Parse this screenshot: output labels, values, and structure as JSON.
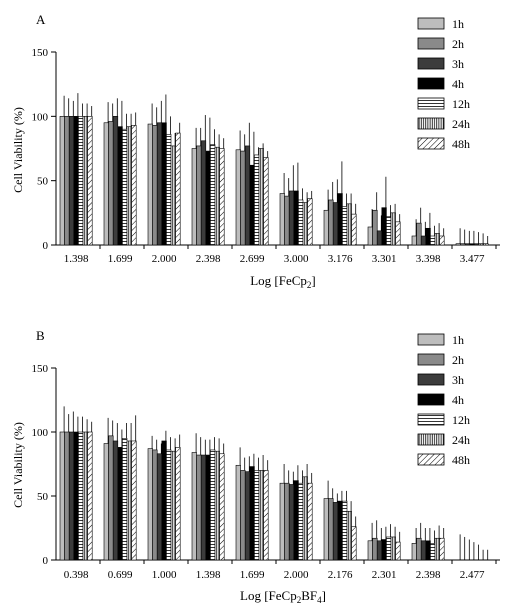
{
  "series_styles": [
    {
      "fill": "#bdbdbd",
      "pattern": "solid"
    },
    {
      "fill": "#8a8a8a",
      "pattern": "solid"
    },
    {
      "fill": "#3c3c3c",
      "pattern": "solid"
    },
    {
      "fill": "#000000",
      "pattern": "solid"
    },
    {
      "fill": "#ffffff",
      "pattern": "hstripe"
    },
    {
      "fill": "#ffffff",
      "pattern": "vstripe"
    },
    {
      "fill": "#ffffff",
      "pattern": "diag"
    }
  ],
  "chart_data": [
    {
      "type": "bar",
      "panel_label": "A",
      "xlabel": "Log [FeCp",
      "xlabel_sub1": "2",
      "xlabel_rest": "]",
      "xlabel_sub2": "",
      "xlabel_end": "",
      "ylabel": "Cell Viability (%)",
      "ylim": [
        0,
        150
      ],
      "yticks": [
        0,
        50,
        100,
        150
      ],
      "categories": [
        "1.398",
        "1.699",
        "2.000",
        "2.398",
        "2.699",
        "3.000",
        "3.176",
        "3.301",
        "3.398",
        "3.477"
      ],
      "series": [
        {
          "name": "1h",
          "values": [
            100,
            95,
            94,
            75,
            74,
            40,
            27,
            14,
            7,
            1
          ],
          "errors": [
            16,
            16,
            16,
            16,
            15,
            16,
            16,
            14,
            13,
            12
          ]
        },
        {
          "name": "2h",
          "values": [
            100,
            96,
            93,
            77,
            73,
            38,
            35,
            27,
            17,
            1
          ],
          "errors": [
            14,
            14,
            14,
            14,
            13,
            14,
            14,
            14,
            12,
            11
          ]
        },
        {
          "name": "3h",
          "values": [
            100,
            100,
            95,
            81,
            77,
            42,
            33,
            11,
            7,
            1
          ],
          "errors": [
            12,
            14,
            17,
            20,
            18,
            20,
            18,
            12,
            11,
            10
          ]
        },
        {
          "name": "4h",
          "values": [
            100,
            92,
            95,
            73,
            62,
            42,
            40,
            29,
            13,
            1
          ],
          "errors": [
            18,
            20,
            22,
            26,
            26,
            22,
            25,
            24,
            12,
            10
          ]
        },
        {
          "name": "12h",
          "values": [
            100,
            90,
            86,
            78,
            70,
            35,
            30,
            22,
            7,
            1
          ],
          "errors": [
            10,
            12,
            14,
            12,
            6,
            9,
            10,
            9,
            8,
            9
          ]
        },
        {
          "name": "24h",
          "values": [
            100,
            92,
            77,
            76,
            75,
            33,
            32,
            25,
            9,
            1
          ],
          "errors": [
            10,
            10,
            10,
            10,
            4,
            8,
            8,
            7,
            8,
            8
          ]
        },
        {
          "name": "48h",
          "values": [
            100,
            93,
            87,
            75,
            68,
            36,
            24,
            18,
            7,
            1
          ],
          "errors": [
            8,
            10,
            8,
            8,
            5,
            6,
            8,
            6,
            6,
            6
          ]
        }
      ],
      "legend_position": "top-right",
      "grid": false
    },
    {
      "type": "bar",
      "panel_label": "B",
      "xlabel": "Log [FeCp",
      "xlabel_sub1": "2",
      "xlabel_rest": "BF",
      "xlabel_sub2": "4",
      "xlabel_end": "]",
      "ylabel": "Cell Viability (%)",
      "ylim": [
        0,
        150
      ],
      "yticks": [
        0,
        50,
        100,
        150
      ],
      "categories": [
        "0.398",
        "0.699",
        "1.000",
        "1.398",
        "1.699",
        "2.000",
        "2.176",
        "2.301",
        "2.398",
        "2.477"
      ],
      "series": [
        {
          "name": "1h",
          "values": [
            100,
            91,
            87,
            84,
            74,
            60,
            48,
            15,
            13,
            0
          ],
          "errors": [
            20,
            20,
            10,
            15,
            14,
            15,
            14,
            14,
            12,
            20
          ]
        },
        {
          "name": "2h",
          "values": [
            100,
            97,
            86,
            82,
            70,
            60,
            48,
            17,
            17,
            0
          ],
          "errors": [
            14,
            12,
            8,
            14,
            10,
            10,
            8,
            14,
            12,
            18
          ]
        },
        {
          "name": "3h",
          "values": [
            100,
            93,
            83,
            82,
            69,
            59,
            45,
            15,
            15,
            0
          ],
          "errors": [
            16,
            14,
            8,
            12,
            12,
            10,
            7,
            10,
            10,
            16
          ]
        },
        {
          "name": "4h",
          "values": [
            100,
            88,
            93,
            82,
            73,
            62,
            46,
            16,
            15,
            0
          ],
          "errors": [
            12,
            14,
            8,
            12,
            10,
            12,
            8,
            10,
            10,
            14
          ]
        },
        {
          "name": "12h",
          "values": [
            100,
            95,
            86,
            86,
            70,
            60,
            46,
            18,
            13,
            0
          ],
          "errors": [
            12,
            12,
            10,
            10,
            10,
            10,
            8,
            10,
            10,
            12
          ]
        },
        {
          "name": "24h",
          "values": [
            100,
            93,
            85,
            85,
            70,
            65,
            38,
            18,
            17,
            0
          ],
          "errors": [
            10,
            14,
            10,
            10,
            12,
            10,
            8,
            8,
            10,
            8
          ]
        },
        {
          "name": "48h",
          "values": [
            100,
            93,
            88,
            83,
            70,
            60,
            26,
            14,
            17,
            0
          ],
          "errors": [
            8,
            20,
            10,
            8,
            8,
            8,
            8,
            8,
            8,
            8
          ]
        }
      ],
      "legend_position": "top-right",
      "grid": false
    }
  ]
}
